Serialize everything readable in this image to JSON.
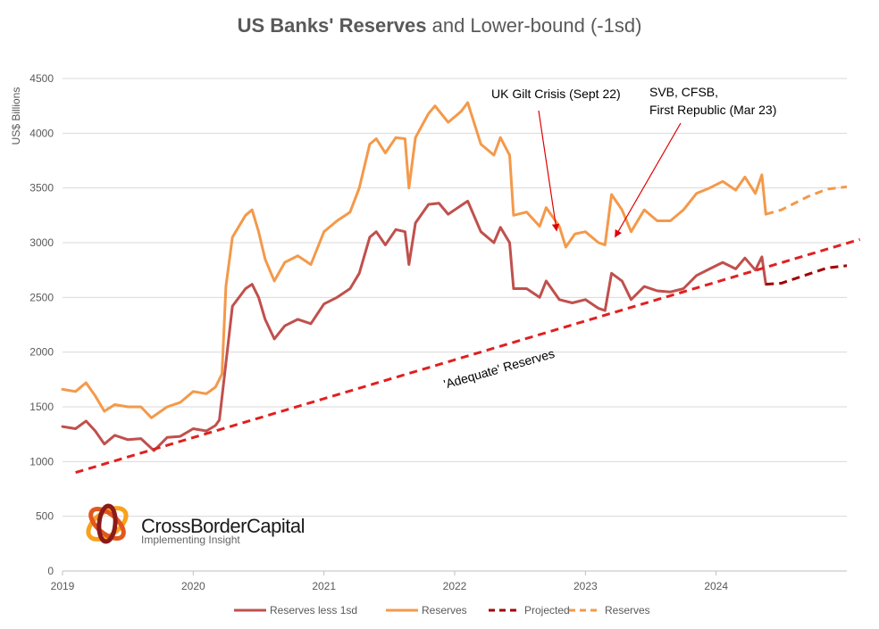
{
  "chart_data": {
    "type": "line",
    "title_bold": "US Banks' Reserves",
    "title_rest": " and Lower-bound (-1sd)",
    "ylabel": "US$ Billions",
    "ylim": [
      0,
      4500
    ],
    "xlim": [
      2019.0,
      2025.0
    ],
    "yticks": [
      "0",
      "500",
      "1000",
      "1500",
      "2000",
      "2500",
      "3000",
      "3500",
      "4000",
      "4500"
    ],
    "xticks": [
      "2019",
      "2020",
      "2021",
      "2022",
      "2023",
      "2024"
    ],
    "grid": "horizontal",
    "legend_position": "bottom",
    "series": [
      {
        "name": "Reserves less 1sd",
        "color": "#c0504d",
        "style": "solid",
        "points": [
          [
            2019.0,
            1320
          ],
          [
            2019.1,
            1300
          ],
          [
            2019.18,
            1370
          ],
          [
            2019.25,
            1280
          ],
          [
            2019.32,
            1160
          ],
          [
            2019.4,
            1240
          ],
          [
            2019.5,
            1200
          ],
          [
            2019.6,
            1210
          ],
          [
            2019.7,
            1100
          ],
          [
            2019.8,
            1220
          ],
          [
            2019.9,
            1230
          ],
          [
            2020.0,
            1300
          ],
          [
            2020.1,
            1280
          ],
          [
            2020.17,
            1330
          ],
          [
            2020.2,
            1380
          ],
          [
            2020.25,
            1900
          ],
          [
            2020.3,
            2420
          ],
          [
            2020.4,
            2580
          ],
          [
            2020.45,
            2620
          ],
          [
            2020.5,
            2500
          ],
          [
            2020.55,
            2300
          ],
          [
            2020.62,
            2120
          ],
          [
            2020.7,
            2240
          ],
          [
            2020.8,
            2300
          ],
          [
            2020.9,
            2260
          ],
          [
            2021.0,
            2440
          ],
          [
            2021.1,
            2500
          ],
          [
            2021.2,
            2580
          ],
          [
            2021.27,
            2720
          ],
          [
            2021.35,
            3050
          ],
          [
            2021.4,
            3100
          ],
          [
            2021.47,
            2980
          ],
          [
            2021.55,
            3120
          ],
          [
            2021.62,
            3100
          ],
          [
            2021.65,
            2800
          ],
          [
            2021.7,
            3180
          ],
          [
            2021.8,
            3350
          ],
          [
            2021.88,
            3360
          ],
          [
            2021.95,
            3260
          ],
          [
            2022.05,
            3340
          ],
          [
            2022.1,
            3380
          ],
          [
            2022.2,
            3100
          ],
          [
            2022.3,
            3000
          ],
          [
            2022.35,
            3140
          ],
          [
            2022.42,
            3000
          ],
          [
            2022.45,
            2580
          ],
          [
            2022.55,
            2580
          ],
          [
            2022.65,
            2500
          ],
          [
            2022.7,
            2650
          ],
          [
            2022.8,
            2480
          ],
          [
            2022.9,
            2450
          ],
          [
            2023.0,
            2480
          ],
          [
            2023.1,
            2400
          ],
          [
            2023.15,
            2380
          ],
          [
            2023.2,
            2720
          ],
          [
            2023.28,
            2650
          ],
          [
            2023.35,
            2480
          ],
          [
            2023.45,
            2600
          ],
          [
            2023.55,
            2560
          ],
          [
            2023.65,
            2550
          ],
          [
            2023.75,
            2580
          ],
          [
            2023.85,
            2700
          ],
          [
            2023.95,
            2760
          ],
          [
            2024.05,
            2820
          ],
          [
            2024.15,
            2760
          ],
          [
            2024.22,
            2860
          ],
          [
            2024.3,
            2750
          ],
          [
            2024.35,
            2870
          ],
          [
            2024.38,
            2620
          ]
        ]
      },
      {
        "name": "Reserves",
        "color": "#f4994a",
        "style": "solid",
        "points": [
          [
            2019.0,
            1660
          ],
          [
            2019.1,
            1640
          ],
          [
            2019.18,
            1720
          ],
          [
            2019.25,
            1600
          ],
          [
            2019.32,
            1460
          ],
          [
            2019.4,
            1520
          ],
          [
            2019.5,
            1500
          ],
          [
            2019.6,
            1500
          ],
          [
            2019.68,
            1400
          ],
          [
            2019.8,
            1500
          ],
          [
            2019.9,
            1540
          ],
          [
            2020.0,
            1640
          ],
          [
            2020.1,
            1620
          ],
          [
            2020.17,
            1680
          ],
          [
            2020.22,
            1800
          ],
          [
            2020.25,
            2600
          ],
          [
            2020.3,
            3050
          ],
          [
            2020.4,
            3250
          ],
          [
            2020.45,
            3300
          ],
          [
            2020.5,
            3100
          ],
          [
            2020.55,
            2850
          ],
          [
            2020.62,
            2650
          ],
          [
            2020.7,
            2820
          ],
          [
            2020.8,
            2880
          ],
          [
            2020.9,
            2800
          ],
          [
            2021.0,
            3100
          ],
          [
            2021.1,
            3200
          ],
          [
            2021.2,
            3280
          ],
          [
            2021.27,
            3500
          ],
          [
            2021.35,
            3900
          ],
          [
            2021.4,
            3950
          ],
          [
            2021.47,
            3820
          ],
          [
            2021.55,
            3960
          ],
          [
            2021.62,
            3950
          ],
          [
            2021.65,
            3500
          ],
          [
            2021.7,
            3960
          ],
          [
            2021.8,
            4180
          ],
          [
            2021.85,
            4250
          ],
          [
            2021.95,
            4100
          ],
          [
            2022.05,
            4200
          ],
          [
            2022.1,
            4280
          ],
          [
            2022.2,
            3900
          ],
          [
            2022.3,
            3800
          ],
          [
            2022.35,
            3960
          ],
          [
            2022.42,
            3800
          ],
          [
            2022.45,
            3250
          ],
          [
            2022.55,
            3280
          ],
          [
            2022.65,
            3150
          ],
          [
            2022.7,
            3320
          ],
          [
            2022.8,
            3150
          ],
          [
            2022.85,
            2960
          ],
          [
            2022.92,
            3080
          ],
          [
            2023.0,
            3100
          ],
          [
            2023.1,
            3000
          ],
          [
            2023.15,
            2980
          ],
          [
            2023.2,
            3440
          ],
          [
            2023.28,
            3300
          ],
          [
            2023.35,
            3100
          ],
          [
            2023.45,
            3300
          ],
          [
            2023.55,
            3200
          ],
          [
            2023.65,
            3200
          ],
          [
            2023.75,
            3300
          ],
          [
            2023.85,
            3450
          ],
          [
            2023.95,
            3500
          ],
          [
            2024.05,
            3560
          ],
          [
            2024.15,
            3480
          ],
          [
            2024.22,
            3600
          ],
          [
            2024.3,
            3450
          ],
          [
            2024.35,
            3620
          ],
          [
            2024.38,
            3260
          ]
        ]
      },
      {
        "name": "Projected",
        "color": "#a00000",
        "style": "dashed",
        "points": [
          [
            2024.38,
            2620
          ],
          [
            2024.5,
            2630
          ],
          [
            2024.7,
            2710
          ],
          [
            2024.85,
            2770
          ],
          [
            2025.0,
            2790
          ]
        ]
      },
      {
        "name": "Reserves",
        "color": "#f4994a",
        "style": "dashed",
        "points": [
          [
            2024.38,
            3260
          ],
          [
            2024.5,
            3300
          ],
          [
            2024.7,
            3420
          ],
          [
            2024.85,
            3490
          ],
          [
            2025.0,
            3510
          ]
        ]
      },
      {
        "name": "'Adequate' Reserves",
        "color": "#e02020",
        "style": "dashed",
        "legend": false,
        "points": [
          [
            2019.1,
            900
          ],
          [
            2025.1,
            3030
          ]
        ]
      }
    ],
    "annotations": [
      {
        "lines": [
          "UK Gilt Crisis (Sept 22)"
        ],
        "arrow_to": [
          2022.78,
          3060
        ]
      },
      {
        "lines": [
          "SVB, CFSB,",
          "First Republic (Mar 23)"
        ],
        "arrow_to": [
          2023.2,
          3020
        ]
      },
      {
        "lines": [
          "'Adequate' Reserves"
        ],
        "rotated": true
      }
    ],
    "legend_entries": [
      {
        "label": "Reserves less 1sd",
        "color": "#c0504d",
        "style": "solid"
      },
      {
        "label": "Reserves",
        "color": "#f4994a",
        "style": "solid"
      },
      {
        "label": "Projected",
        "color": "#a00000",
        "style": "dashed"
      },
      {
        "label": "Reserves",
        "color": "#f4994a",
        "style": "dashed"
      }
    ]
  },
  "logo": {
    "name": "CrossBorderCapital",
    "tagline": "Implementing Insight"
  }
}
